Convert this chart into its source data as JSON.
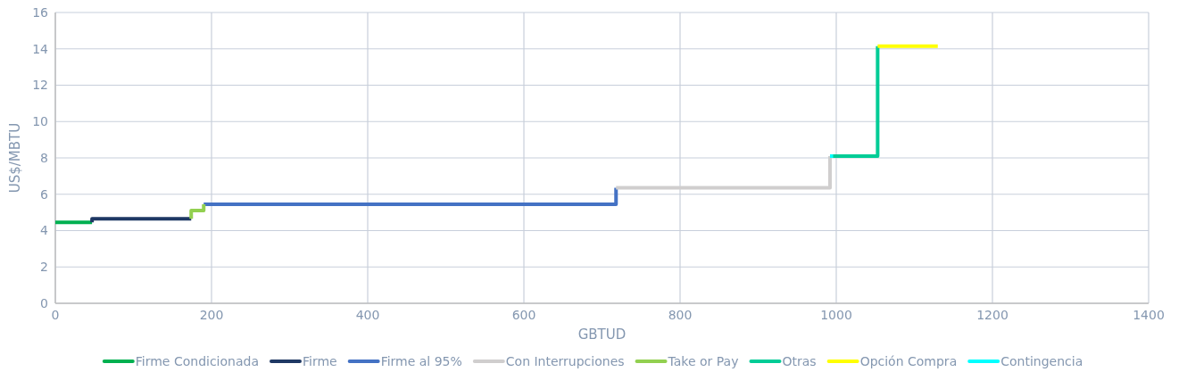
{
  "chart_data": {
    "type": "line",
    "xlabel": "GBTUD",
    "ylabel": "US$/MBTU",
    "xlim": [
      0,
      1400
    ],
    "xticks": [
      0,
      200,
      400,
      600,
      800,
      1000,
      1200,
      1400
    ],
    "ylim": [
      0,
      16
    ],
    "yticks": [
      0,
      2,
      4,
      6,
      8,
      10,
      12,
      14,
      16
    ],
    "grid": true,
    "legend": "bottom",
    "marker": "none",
    "line_style": "solid",
    "series": [
      {
        "name": "Firme Condicionada",
        "color": "#00b050",
        "x": [
          0,
          47
        ],
        "values": [
          4.45,
          4.45
        ]
      },
      {
        "name": "Firme",
        "color": "#1f3864",
        "x": [
          47,
          47,
          174
        ],
        "values": [
          4.45,
          4.65,
          4.65
        ]
      },
      {
        "name": "Firme al 95%",
        "color": "#4472c4",
        "x": [
          190,
          718,
          718
        ],
        "values": [
          5.45,
          5.45,
          6.35
        ]
      },
      {
        "name": "Con Interrupciones",
        "color": "#d0cece",
        "x": [
          718,
          992,
          992
        ],
        "values": [
          6.35,
          6.35,
          8.1
        ]
      },
      {
        "name": "Take or Pay",
        "color": "#92d050",
        "x": [
          174,
          174,
          190,
          190
        ],
        "values": [
          4.65,
          5.1,
          5.1,
          5.45
        ]
      },
      {
        "name": "Otras",
        "color": "#00cc96",
        "x": [
          995,
          1053,
          1053
        ],
        "values": [
          8.1,
          8.1,
          14.15
        ]
      },
      {
        "name": "Opción Compra",
        "color": "#ffff00",
        "x": [
          1053,
          1130
        ],
        "values": [
          14.15,
          14.15
        ]
      },
      {
        "name": "Contingencia",
        "color": "#00ffff",
        "x": [
          992,
          996
        ],
        "values": [
          8.1,
          8.1
        ]
      }
    ]
  }
}
